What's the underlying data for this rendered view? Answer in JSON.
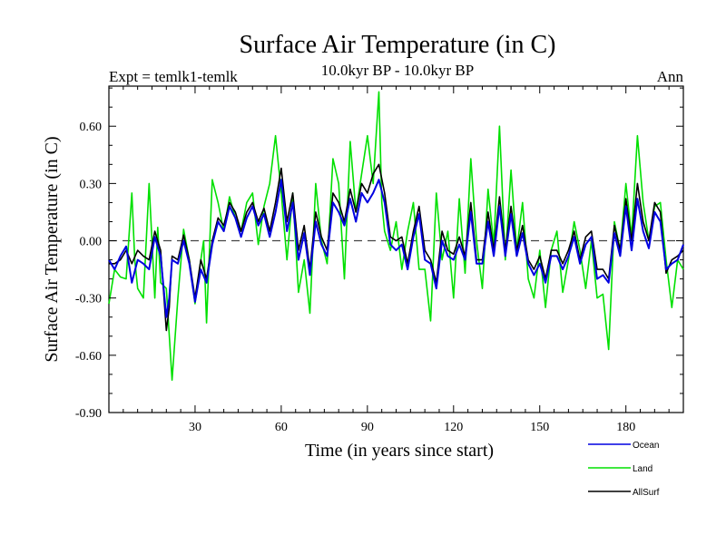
{
  "chart_data": {
    "type": "line",
    "title": "Surface Air Temperature (in C)",
    "subtitle": "10.0kyr BP - 10.0kyr BP",
    "left_note": "Expt = temlk1-temlk",
    "right_note": "Ann",
    "xlabel": "Time (in years since start)",
    "ylabel": "Surface Air Temperature (in C)",
    "xlim": [
      0,
      200
    ],
    "ylim": [
      -0.9,
      0.81
    ],
    "xticks": [
      30,
      60,
      90,
      120,
      150,
      180
    ],
    "xtick_labels": [
      "30",
      "60",
      "90",
      "120",
      "150",
      "180"
    ],
    "yticks": [
      -0.9,
      -0.6,
      -0.3,
      0.0,
      0.3,
      0.6
    ],
    "ytick_labels": [
      "-0.90",
      "-0.60",
      "-0.30",
      "0.00",
      "0.30",
      "0.60"
    ],
    "zero_line": "dashed",
    "legend_position": "bottom-right",
    "series": [
      {
        "name": "Land",
        "color": "#00e000",
        "x": [
          0,
          2,
          4,
          6,
          8,
          9,
          10,
          12,
          14,
          16,
          17,
          18,
          20,
          22,
          24,
          26,
          28,
          30,
          32,
          33,
          34,
          36,
          38,
          40,
          42,
          44,
          46,
          48,
          50,
          52,
          54,
          56,
          58,
          60,
          62,
          64,
          66,
          68,
          70,
          72,
          74,
          76,
          78,
          80,
          82,
          84,
          86,
          88,
          90,
          92,
          94,
          95,
          96,
          98,
          100,
          102,
          104,
          106,
          108,
          110,
          112,
          114,
          116,
          118,
          120,
          122,
          124,
          126,
          128,
          130,
          132,
          134,
          136,
          138,
          140,
          142,
          144,
          146,
          148,
          150,
          152,
          154,
          156,
          158,
          160,
          162,
          164,
          166,
          168,
          170,
          172,
          174,
          176,
          178,
          180,
          182,
          184,
          186,
          188,
          190,
          192,
          194,
          196,
          198,
          200
        ],
        "values": [
          -0.33,
          -0.15,
          -0.19,
          -0.2,
          0.25,
          -0.1,
          -0.25,
          -0.3,
          0.3,
          -0.3,
          0.07,
          -0.22,
          -0.25,
          -0.73,
          -0.3,
          0.06,
          -0.1,
          -0.33,
          -0.1,
          0.0,
          -0.43,
          0.32,
          0.2,
          0.05,
          0.23,
          0.12,
          0.05,
          0.2,
          0.25,
          -0.02,
          0.18,
          0.3,
          0.55,
          0.25,
          -0.1,
          0.25,
          -0.27,
          -0.1,
          -0.38,
          0.3,
          0.0,
          -0.12,
          0.43,
          0.3,
          -0.2,
          0.52,
          0.15,
          0.35,
          0.55,
          0.3,
          0.78,
          0.2,
          0.05,
          -0.05,
          0.1,
          -0.15,
          0.05,
          0.2,
          -0.15,
          -0.15,
          -0.42,
          0.25,
          -0.1,
          0.05,
          -0.3,
          0.22,
          -0.17,
          0.43,
          0.0,
          -0.25,
          0.27,
          -0.02,
          0.6,
          -0.1,
          0.37,
          -0.05,
          0.2,
          -0.2,
          -0.3,
          -0.05,
          -0.35,
          -0.05,
          0.05,
          -0.27,
          -0.1,
          0.1,
          -0.05,
          -0.25,
          0.0,
          -0.3,
          -0.28,
          -0.57,
          0.1,
          -0.05,
          0.3,
          0.02,
          0.55,
          0.2,
          0.0,
          0.18,
          0.2,
          -0.1,
          -0.35,
          -0.1,
          -0.15
        ]
      },
      {
        "name": "AllSurf",
        "color": "#000000",
        "x": [
          0,
          2,
          4,
          6,
          8,
          10,
          12,
          14,
          16,
          18,
          20,
          21,
          22,
          24,
          26,
          28,
          30,
          32,
          34,
          36,
          38,
          40,
          42,
          44,
          46,
          48,
          50,
          52,
          54,
          56,
          58,
          60,
          62,
          64,
          66,
          68,
          70,
          72,
          74,
          76,
          78,
          80,
          82,
          84,
          86,
          88,
          90,
          92,
          94,
          96,
          98,
          100,
          102,
          104,
          106,
          108,
          110,
          112,
          114,
          116,
          118,
          120,
          122,
          124,
          126,
          128,
          130,
          132,
          134,
          136,
          138,
          140,
          142,
          144,
          146,
          148,
          150,
          152,
          154,
          156,
          158,
          160,
          162,
          164,
          166,
          168,
          170,
          172,
          174,
          176,
          178,
          180,
          182,
          184,
          186,
          188,
          190,
          192,
          194,
          196,
          198,
          200
        ],
        "values": [
          -0.12,
          -0.12,
          -0.1,
          -0.05,
          -0.12,
          -0.05,
          -0.08,
          -0.1,
          0.05,
          -0.05,
          -0.47,
          -0.35,
          -0.08,
          -0.1,
          0.03,
          -0.1,
          -0.3,
          -0.1,
          -0.2,
          0.0,
          0.12,
          0.08,
          0.2,
          0.15,
          0.05,
          0.15,
          0.2,
          0.1,
          0.17,
          0.05,
          0.2,
          0.38,
          0.1,
          0.25,
          -0.05,
          0.08,
          -0.15,
          0.15,
          0.02,
          -0.05,
          0.25,
          0.2,
          0.1,
          0.27,
          0.15,
          0.3,
          0.25,
          0.35,
          0.4,
          0.25,
          0.02,
          0.0,
          0.02,
          -0.12,
          0.05,
          0.18,
          -0.05,
          -0.1,
          -0.22,
          0.05,
          -0.05,
          -0.07,
          0.02,
          -0.08,
          0.2,
          -0.1,
          -0.1,
          0.15,
          -0.05,
          0.23,
          -0.05,
          0.18,
          -0.05,
          0.08,
          -0.1,
          -0.15,
          -0.08,
          -0.2,
          -0.05,
          -0.05,
          -0.12,
          -0.05,
          0.05,
          -0.1,
          0.02,
          0.05,
          -0.15,
          -0.15,
          -0.2,
          0.08,
          -0.05,
          0.22,
          0.0,
          0.3,
          0.1,
          0.0,
          0.2,
          0.15,
          -0.17,
          -0.1,
          -0.08,
          -0.05
        ]
      },
      {
        "name": "Ocean",
        "color": "#0000e0",
        "x": [
          0,
          2,
          4,
          6,
          8,
          10,
          12,
          14,
          16,
          18,
          20,
          21,
          22,
          24,
          26,
          28,
          30,
          32,
          34,
          36,
          38,
          40,
          42,
          44,
          46,
          48,
          50,
          52,
          54,
          56,
          58,
          60,
          62,
          64,
          66,
          68,
          70,
          72,
          74,
          76,
          78,
          80,
          82,
          84,
          86,
          88,
          90,
          92,
          94,
          96,
          98,
          100,
          102,
          104,
          106,
          108,
          110,
          112,
          114,
          116,
          118,
          120,
          122,
          124,
          126,
          128,
          130,
          132,
          134,
          136,
          138,
          140,
          142,
          144,
          146,
          148,
          150,
          152,
          154,
          156,
          158,
          160,
          162,
          164,
          166,
          168,
          170,
          172,
          174,
          176,
          178,
          180,
          182,
          184,
          186,
          188,
          190,
          192,
          194,
          196,
          198,
          200
        ],
        "values": [
          -0.1,
          -0.15,
          -0.08,
          -0.03,
          -0.22,
          -0.1,
          -0.12,
          -0.15,
          0.02,
          -0.08,
          -0.4,
          -0.3,
          -0.1,
          -0.12,
          0.0,
          -0.12,
          -0.32,
          -0.15,
          -0.22,
          -0.02,
          0.1,
          0.05,
          0.18,
          0.12,
          0.02,
          0.12,
          0.18,
          0.08,
          0.14,
          0.02,
          0.15,
          0.32,
          0.05,
          0.2,
          -0.1,
          0.04,
          -0.18,
          0.1,
          -0.02,
          -0.08,
          0.2,
          0.15,
          0.08,
          0.22,
          0.1,
          0.25,
          0.2,
          0.25,
          0.32,
          0.2,
          -0.02,
          -0.05,
          -0.02,
          -0.15,
          0.02,
          0.14,
          -0.1,
          -0.12,
          -0.25,
          0.0,
          -0.08,
          -0.1,
          -0.02,
          -0.1,
          0.15,
          -0.12,
          -0.12,
          0.1,
          -0.08,
          0.18,
          -0.08,
          0.14,
          -0.08,
          0.04,
          -0.12,
          -0.18,
          -0.12,
          -0.22,
          -0.08,
          -0.08,
          -0.15,
          -0.08,
          0.02,
          -0.12,
          -0.02,
          0.02,
          -0.2,
          -0.18,
          -0.22,
          0.04,
          -0.08,
          0.18,
          -0.05,
          0.22,
          0.05,
          -0.04,
          0.15,
          0.1,
          -0.15,
          -0.12,
          -0.1,
          -0.02
        ]
      }
    ],
    "legend_entries": [
      "Ocean",
      "Land",
      "AllSurf"
    ]
  }
}
